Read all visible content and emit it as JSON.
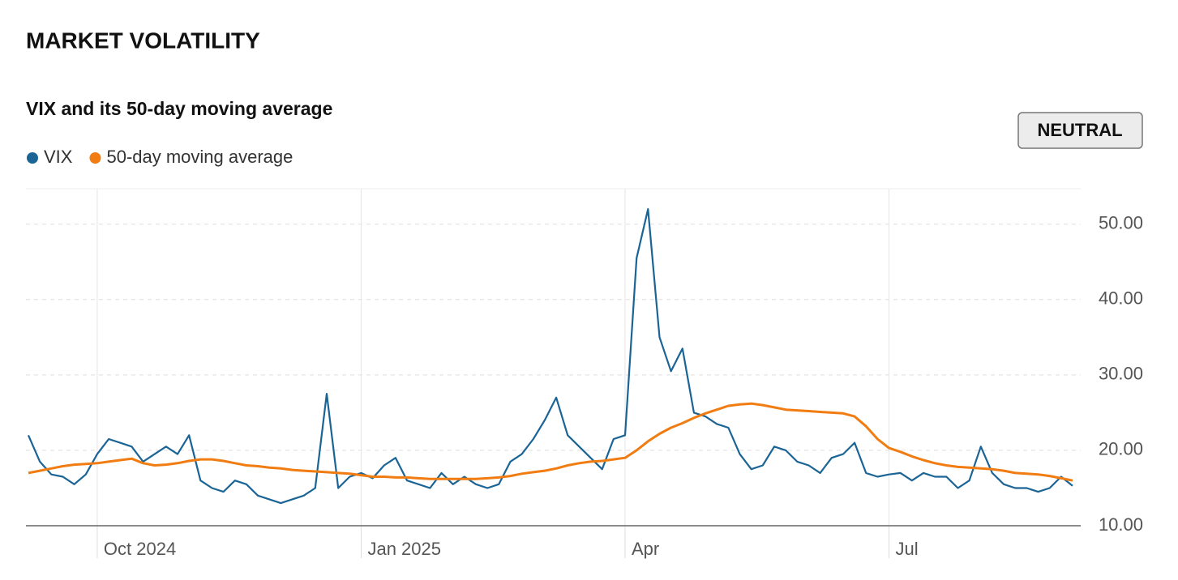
{
  "header": {
    "title": "MARKET VOLATILITY"
  },
  "badge": "NEUTRAL",
  "chart_data": {
    "type": "line",
    "title": "VIX and its 50-day moving average",
    "categories": [
      null,
      null,
      null,
      null,
      null,
      null,
      "Oct 2024",
      null,
      null,
      null,
      null,
      null,
      null,
      null,
      null,
      null,
      null,
      null,
      null,
      null,
      null,
      null,
      null,
      null,
      null,
      null,
      null,
      null,
      null,
      "Jan 2025",
      null,
      null,
      null,
      null,
      null,
      null,
      null,
      null,
      null,
      null,
      null,
      null,
      null,
      null,
      null,
      null,
      null,
      null,
      null,
      null,
      null,
      null,
      "Apr",
      null,
      null,
      null,
      null,
      null,
      null,
      null,
      null,
      null,
      null,
      null,
      null,
      null,
      null,
      null,
      null,
      null,
      null,
      null,
      null,
      null,
      null,
      "Jul",
      null,
      null,
      null,
      null,
      null,
      null,
      null,
      null,
      null,
      null,
      null,
      null,
      null,
      null,
      null,
      null
    ],
    "series": [
      {
        "name": "VIX",
        "color": "#1a6496",
        "values": [
          22,
          18.5,
          16.8,
          16.5,
          15.5,
          16.8,
          19.5,
          21.5,
          21,
          20.5,
          18.5,
          19.5,
          20.5,
          19.5,
          22,
          16,
          15,
          14.5,
          16,
          15.5,
          14,
          13.5,
          13,
          13.5,
          14,
          15,
          27.5,
          15,
          16.5,
          17,
          16.3,
          18,
          19,
          16,
          15.5,
          15,
          17,
          15.5,
          16.5,
          15.5,
          15,
          15.5,
          18.5,
          19.5,
          21.5,
          24,
          27,
          22,
          20.5,
          19,
          17.5,
          21.5,
          22,
          45.5,
          52,
          35,
          30.5,
          33.5,
          25,
          24.5,
          23.5,
          23,
          19.5,
          17.5,
          18,
          20.5,
          20,
          18.5,
          18,
          17,
          19,
          19.5,
          21,
          17,
          16.5,
          16.8,
          17,
          16,
          17,
          16.5,
          16.5,
          15,
          16,
          20.5,
          17,
          15.5,
          15,
          15,
          14.5,
          15,
          16.5,
          15.3
        ]
      },
      {
        "name": "50-day moving average",
        "color": "#f07c12",
        "values": [
          17,
          17.3,
          17.6,
          17.9,
          18.1,
          18.2,
          18.3,
          18.5,
          18.7,
          18.9,
          18.3,
          18.0,
          18.1,
          18.3,
          18.6,
          18.8,
          18.8,
          18.6,
          18.3,
          18.0,
          17.9,
          17.7,
          17.6,
          17.4,
          17.3,
          17.2,
          17.1,
          17.0,
          16.9,
          16.7,
          16.5,
          16.5,
          16.4,
          16.4,
          16.3,
          16.2,
          16.2,
          16.2,
          16.2,
          16.2,
          16.3,
          16.4,
          16.6,
          16.9,
          17.1,
          17.3,
          17.6,
          18.0,
          18.3,
          18.5,
          18.6,
          18.8,
          19.0,
          20.0,
          21.2,
          22.2,
          23.0,
          23.6,
          24.3,
          24.9,
          25.4,
          25.9,
          26.1,
          26.2,
          26.0,
          25.7,
          25.4,
          25.3,
          25.2,
          25.1,
          25.0,
          24.9,
          24.5,
          23.2,
          21.5,
          20.3,
          19.8,
          19.2,
          18.7,
          18.3,
          18.0,
          17.8,
          17.7,
          17.6,
          17.5,
          17.3,
          17.0,
          16.9,
          16.8,
          16.6,
          16.3,
          16.0
        ]
      }
    ],
    "ylim": [
      10,
      54.7
    ],
    "yticks": [
      {
        "value": 10,
        "label": "10.00"
      },
      {
        "value": 20,
        "label": "20.00"
      },
      {
        "value": 30,
        "label": "30.00"
      },
      {
        "value": 40,
        "label": "40.00"
      },
      {
        "value": 50,
        "label": "50.00"
      }
    ],
    "grid": true,
    "legend": "top-left"
  }
}
